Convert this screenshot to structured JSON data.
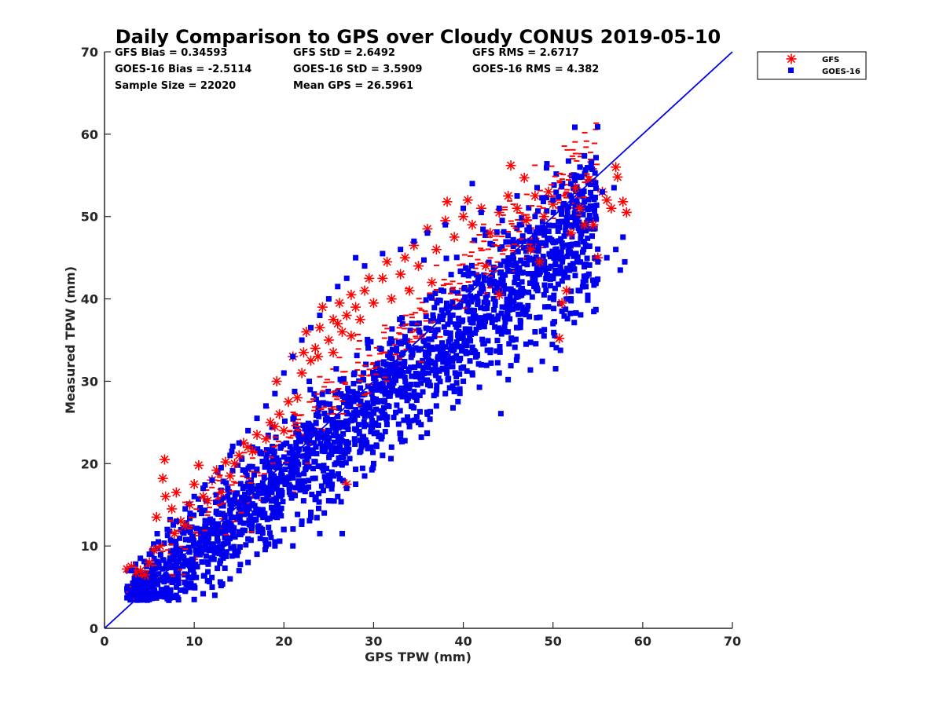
{
  "chart_data": {
    "type": "scatter",
    "title": "Daily Comparison to GPS over Cloudy CONUS 2019-05-10",
    "xlabel": "GPS TPW (mm)",
    "ylabel": "Measured TPW (mm)",
    "xlim": [
      0,
      70
    ],
    "ylim": [
      0,
      70
    ],
    "xticks": [
      "0",
      "10",
      "20",
      "30",
      "40",
      "50",
      "60",
      "70"
    ],
    "yticks": [
      "0",
      "10",
      "20",
      "30",
      "40",
      "50",
      "60",
      "70"
    ],
    "grid": false,
    "legend_position": "outside-top-right",
    "stats": [
      [
        "GFS Bias = 0.34593",
        "GFS StD = 2.6492",
        "GFS RMS = 2.6717"
      ],
      [
        "GOES-16 Bias = -2.5114",
        "GOES-16 StD = 3.5909",
        "GOES-16 RMS = 4.382"
      ],
      [
        "Sample Size = 22020",
        "Mean GPS = 26.5961",
        ""
      ]
    ],
    "reference_line": {
      "x": [
        0,
        70
      ],
      "y": [
        0,
        70
      ],
      "color": "#0000ee"
    },
    "series": [
      {
        "name": "GFS",
        "marker": "asterisk",
        "color": "#ff0000",
        "points": [
          [
            2.5,
            7.2
          ],
          [
            3.0,
            7.5
          ],
          [
            3.5,
            6.8
          ],
          [
            4.5,
            6.5
          ],
          [
            5.0,
            8.0
          ],
          [
            5.5,
            9.5
          ],
          [
            5.8,
            13.5
          ],
          [
            6.5,
            18.2
          ],
          [
            6.7,
            20.5
          ],
          [
            6.8,
            16.0
          ],
          [
            7.5,
            14.5
          ],
          [
            8.0,
            16.5
          ],
          [
            8.5,
            13.0
          ],
          [
            9.5,
            15.0
          ],
          [
            10.0,
            17.5
          ],
          [
            10.5,
            19.8
          ],
          [
            11.0,
            16.0
          ],
          [
            12.0,
            18.0
          ],
          [
            12.5,
            19.2
          ],
          [
            13.0,
            16.5
          ],
          [
            13.5,
            20.2
          ],
          [
            14.0,
            18.5
          ],
          [
            15.0,
            21.0
          ],
          [
            16.0,
            22.0
          ],
          [
            16.5,
            21.5
          ],
          [
            17.0,
            23.5
          ],
          [
            18.0,
            23.0
          ],
          [
            19.0,
            24.5
          ],
          [
            19.2,
            30.0
          ],
          [
            19.5,
            26.0
          ],
          [
            20.0,
            24.0
          ],
          [
            20.5,
            27.5
          ],
          [
            21.0,
            33.0
          ],
          [
            21.5,
            28.0
          ],
          [
            22.0,
            31.0
          ],
          [
            22.2,
            33.5
          ],
          [
            22.5,
            36.0
          ],
          [
            23.0,
            32.5
          ],
          [
            23.5,
            34.0
          ],
          [
            24.0,
            36.5
          ],
          [
            24.3,
            39.0
          ],
          [
            25.0,
            35.0
          ],
          [
            25.5,
            33.5
          ],
          [
            26.0,
            37.0
          ],
          [
            26.2,
            39.5
          ],
          [
            26.5,
            36.0
          ],
          [
            27.0,
            38.0
          ],
          [
            27.0,
            17.5
          ],
          [
            27.5,
            35.5
          ],
          [
            28.0,
            39.0
          ],
          [
            28.5,
            37.5
          ],
          [
            29.0,
            41.0
          ],
          [
            30.0,
            39.5
          ],
          [
            31.0,
            42.5
          ],
          [
            32.0,
            40.0
          ],
          [
            33.0,
            43.0
          ],
          [
            34.0,
            41.0
          ],
          [
            34.5,
            46.5
          ],
          [
            35.0,
            44.0
          ],
          [
            36.0,
            48.5
          ],
          [
            37.0,
            46.0
          ],
          [
            38.0,
            49.5
          ],
          [
            38.2,
            51.8
          ],
          [
            39.0,
            47.5
          ],
          [
            40.0,
            50.0
          ],
          [
            40.5,
            52.0
          ],
          [
            41.0,
            49.0
          ],
          [
            42.0,
            51.0
          ],
          [
            43.0,
            48.0
          ],
          [
            44.0,
            50.5
          ],
          [
            45.0,
            52.5
          ],
          [
            45.3,
            56.2
          ],
          [
            46.0,
            51.0
          ],
          [
            46.8,
            54.7
          ],
          [
            47.0,
            49.5
          ],
          [
            48.0,
            52.5
          ],
          [
            49.0,
            50.0
          ],
          [
            49.5,
            53.0
          ],
          [
            50.0,
            51.5
          ],
          [
            50.7,
            35.2
          ],
          [
            51.0,
            39.5
          ],
          [
            51.5,
            41.0
          ],
          [
            52.0,
            48.0
          ],
          [
            52.5,
            53.5
          ],
          [
            53.0,
            51.0
          ],
          [
            53.5,
            49.0
          ],
          [
            54.0,
            54.5
          ],
          [
            54.5,
            49.0
          ],
          [
            55.0,
            45.0
          ],
          [
            55.5,
            53.0
          ],
          [
            56.0,
            52.0
          ],
          [
            56.5,
            51.0
          ],
          [
            57.0,
            56.0
          ],
          [
            57.2,
            54.8
          ],
          [
            57.8,
            51.8
          ],
          [
            58.2,
            50.5
          ],
          [
            47.5,
            46.0
          ],
          [
            48.5,
            44.5
          ],
          [
            44.0,
            40.5
          ],
          [
            42.5,
            44.0
          ],
          [
            36.5,
            42.0
          ],
          [
            33.5,
            45.0
          ],
          [
            31.5,
            44.5
          ],
          [
            29.5,
            42.5
          ],
          [
            27.5,
            40.5
          ],
          [
            25.5,
            37.5
          ],
          [
            23.8,
            33.0
          ],
          [
            18.5,
            25.0
          ],
          [
            15.5,
            22.5
          ],
          [
            14.5,
            20.0
          ],
          [
            11.5,
            15.5
          ],
          [
            9.0,
            12.5
          ],
          [
            7.8,
            11.5
          ],
          [
            6.2,
            10.0
          ],
          [
            4.0,
            7.0
          ]
        ]
      },
      {
        "name": "GOES-16",
        "marker": "square",
        "color": "#0000ee",
        "points": [
          [
            2.5,
            4.8
          ],
          [
            3.5,
            5.0
          ],
          [
            4.0,
            3.8
          ],
          [
            5.0,
            3.5
          ],
          [
            6.0,
            4.2
          ],
          [
            7.0,
            3.6
          ],
          [
            8.0,
            4.0
          ],
          [
            9.0,
            4.5
          ],
          [
            10.0,
            3.5
          ],
          [
            11.0,
            4.2
          ],
          [
            12.0,
            5.0
          ],
          [
            13.0,
            5.2
          ],
          [
            14.0,
            6.0
          ],
          [
            15.0,
            7.0
          ],
          [
            16.0,
            8.0
          ],
          [
            17.0,
            9.0
          ],
          [
            18.0,
            10.0
          ],
          [
            19.0,
            10.5
          ],
          [
            20.0,
            12.0
          ],
          [
            21.0,
            10.0
          ],
          [
            22.0,
            13.0
          ],
          [
            23.0,
            13.5
          ],
          [
            24.0,
            11.5
          ],
          [
            24.5,
            14.0
          ],
          [
            25.0,
            15.5
          ],
          [
            26.0,
            16.0
          ],
          [
            27.0,
            17.0
          ],
          [
            28.0,
            17.5
          ],
          [
            29.0,
            18.5
          ],
          [
            30.0,
            20.0
          ],
          [
            31.0,
            21.0
          ],
          [
            32.0,
            22.0
          ],
          [
            33.0,
            23.0
          ],
          [
            34.0,
            24.5
          ],
          [
            35.0,
            25.0
          ],
          [
            36.0,
            26.0
          ],
          [
            37.0,
            27.0
          ],
          [
            38.0,
            28.5
          ],
          [
            39.0,
            29.0
          ],
          [
            40.0,
            30.0
          ],
          [
            41.0,
            31.0
          ],
          [
            42.0,
            32.0
          ],
          [
            43.0,
            33.5
          ],
          [
            44.0,
            31.0
          ],
          [
            45.0,
            30.2
          ],
          [
            46.0,
            33.0
          ],
          [
            47.0,
            34.5
          ],
          [
            48.0,
            36.0
          ],
          [
            49.0,
            35.5
          ],
          [
            50.0,
            37.0
          ],
          [
            51.0,
            38.5
          ],
          [
            52.0,
            40.0
          ],
          [
            53.0,
            41.0
          ],
          [
            54.0,
            43.0
          ],
          [
            55.0,
            44.5
          ],
          [
            56.0,
            45.0
          ],
          [
            57.0,
            46.0
          ],
          [
            57.5,
            43.5
          ],
          [
            58.0,
            44.5
          ],
          [
            57.8,
            47.5
          ],
          [
            56.8,
            53.5
          ],
          [
            55.5,
            53.0
          ],
          [
            54.5,
            51.0
          ],
          [
            53.0,
            56.0
          ],
          [
            52.0,
            54.0
          ],
          [
            50.0,
            52.0
          ],
          [
            48.0,
            50.0
          ],
          [
            46.0,
            52.5
          ],
          [
            44.0,
            51.0
          ],
          [
            42.0,
            50.5
          ],
          [
            41.0,
            54.0
          ],
          [
            40.0,
            51.0
          ],
          [
            38.0,
            49.0
          ],
          [
            36.0,
            48.0
          ],
          [
            34.5,
            47.0
          ],
          [
            33.0,
            46.0
          ],
          [
            31.0,
            45.5
          ],
          [
            29.0,
            44.0
          ],
          [
            28.0,
            45.0
          ],
          [
            27.0,
            42.5
          ],
          [
            26.0,
            41.5
          ],
          [
            25.0,
            40.0
          ],
          [
            24.0,
            38.0
          ],
          [
            23.0,
            36.5
          ],
          [
            22.0,
            35.0
          ],
          [
            21.0,
            33.0
          ],
          [
            20.0,
            31.0
          ],
          [
            19.0,
            28.5
          ],
          [
            18.0,
            27.0
          ],
          [
            17.0,
            25.5
          ],
          [
            16.0,
            24.0
          ],
          [
            15.0,
            22.5
          ],
          [
            14.0,
            21.0
          ],
          [
            13.0,
            19.5
          ],
          [
            12.0,
            18.0
          ],
          [
            11.0,
            17.0
          ],
          [
            10.0,
            16.0
          ],
          [
            9.0,
            14.5
          ],
          [
            8.0,
            13.0
          ],
          [
            7.0,
            12.0
          ],
          [
            6.0,
            10.5
          ],
          [
            5.0,
            9.0
          ],
          [
            4.0,
            8.5
          ],
          [
            3.0,
            7.0
          ],
          [
            26.5,
            11.5
          ],
          [
            19.0,
            10.0
          ],
          [
            22.5,
            17.0
          ],
          [
            29.5,
            26.0
          ],
          [
            35.5,
            31.0
          ],
          [
            39.5,
            36.0
          ]
        ]
      }
    ]
  }
}
